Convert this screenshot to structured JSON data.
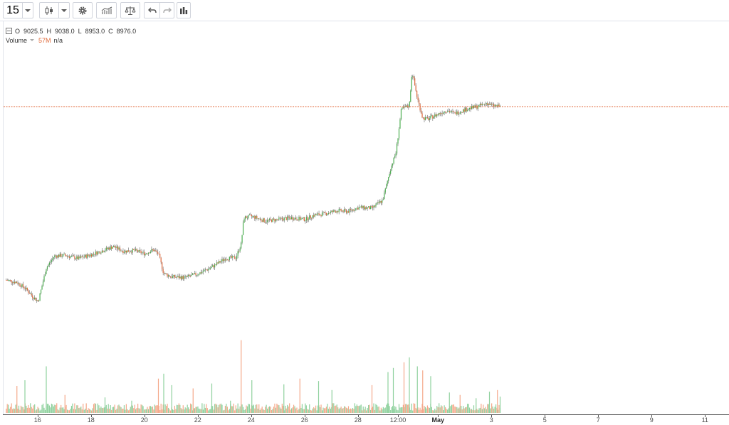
{
  "toolbar": {
    "interval_value": "15",
    "icons": [
      "chevron-down-icon",
      "candlestick-icon",
      "chevron-down-icon",
      "gear-icon",
      "indicators-icon",
      "compare-icon",
      "undo-icon",
      "redo-icon",
      "bar-chart-icon"
    ]
  },
  "legend": {
    "o_label": "O",
    "o_value": "9025.5",
    "h_label": "H",
    "h_value": "9038.0",
    "l_label": "L",
    "l_value": "8953.0",
    "c_label": "C",
    "c_value": "8976.0",
    "volume_label": "Volume",
    "volume_value": "57M",
    "volume_extra": "n/a"
  },
  "colors": {
    "up": "#4caf50",
    "down": "#e0673a",
    "wick": "#6a6a6a",
    "price_line": "#e0673a",
    "vol_up": "#8fd19e",
    "vol_down": "#f4a98a"
  },
  "chart_data": {
    "type": "candlestick",
    "interval": "15",
    "x_ticks": [
      {
        "label": "16",
        "day": 16
      },
      {
        "label": "18",
        "day": 18
      },
      {
        "label": "20",
        "day": 20
      },
      {
        "label": "22",
        "day": 22
      },
      {
        "label": "24",
        "day": 24
      },
      {
        "label": "26",
        "day": 26
      },
      {
        "label": "28",
        "day": 28
      },
      {
        "label": "12:00",
        "day": 29.5
      },
      {
        "label": "May",
        "day": 31,
        "bold": true
      },
      {
        "label": "3",
        "day": 33
      },
      {
        "label": "5",
        "day": 35
      },
      {
        "label": "7",
        "day": 37
      },
      {
        "label": "9",
        "day": 39
      },
      {
        "label": "11",
        "day": 41
      }
    ],
    "x_range": [
      14.7,
      41.9
    ],
    "last_close": 8976.0,
    "ohlc_last": {
      "open": 9025.5,
      "high": 9038.0,
      "low": 8953.0,
      "close": 8976.0
    },
    "price_path": [
      [
        14.8,
        6800
      ],
      [
        15.2,
        6770
      ],
      [
        15.5,
        6700
      ],
      [
        15.8,
        6590
      ],
      [
        16.0,
        6530
      ],
      [
        16.3,
        6950
      ],
      [
        16.6,
        7100
      ],
      [
        17.0,
        7110
      ],
      [
        17.5,
        7070
      ],
      [
        18.0,
        7120
      ],
      [
        18.5,
        7180
      ],
      [
        18.8,
        7220
      ],
      [
        19.2,
        7160
      ],
      [
        19.6,
        7170
      ],
      [
        20.0,
        7130
      ],
      [
        20.3,
        7180
      ],
      [
        20.5,
        7130
      ],
      [
        20.7,
        6880
      ],
      [
        21.0,
        6840
      ],
      [
        21.5,
        6830
      ],
      [
        22.0,
        6880
      ],
      [
        22.5,
        6960
      ],
      [
        23.0,
        7070
      ],
      [
        23.4,
        7080
      ],
      [
        23.6,
        7250
      ],
      [
        23.7,
        7580
      ],
      [
        24.0,
        7600
      ],
      [
        24.5,
        7540
      ],
      [
        25.0,
        7560
      ],
      [
        25.5,
        7580
      ],
      [
        26.0,
        7560
      ],
      [
        26.3,
        7610
      ],
      [
        26.7,
        7630
      ],
      [
        27.2,
        7670
      ],
      [
        27.6,
        7660
      ],
      [
        28.0,
        7710
      ],
      [
        28.5,
        7700
      ],
      [
        28.9,
        7800
      ],
      [
        29.2,
        8200
      ],
      [
        29.4,
        8400
      ],
      [
        29.6,
        8940
      ],
      [
        29.9,
        8990
      ],
      [
        30.0,
        9420
      ],
      [
        30.2,
        9080
      ],
      [
        30.4,
        8830
      ],
      [
        30.6,
        8820
      ],
      [
        30.9,
        8870
      ],
      [
        31.3,
        8930
      ],
      [
        31.6,
        8890
      ],
      [
        32.0,
        8940
      ],
      [
        32.5,
        8980
      ],
      [
        32.8,
        9020
      ],
      [
        33.0,
        8990
      ],
      [
        33.3,
        8976
      ]
    ],
    "volume_spikes": [
      [
        15.2,
        0.33
      ],
      [
        15.5,
        0.4
      ],
      [
        16.3,
        0.57
      ],
      [
        17.0,
        0.22
      ],
      [
        18.5,
        0.19
      ],
      [
        19.5,
        0.15
      ],
      [
        20.5,
        0.42
      ],
      [
        20.7,
        0.48
      ],
      [
        21.0,
        0.34
      ],
      [
        21.8,
        0.3
      ],
      [
        22.5,
        0.36
      ],
      [
        23.2,
        0.15
      ],
      [
        23.6,
        0.89
      ],
      [
        24.0,
        0.4
      ],
      [
        25.2,
        0.35
      ],
      [
        25.8,
        0.42
      ],
      [
        26.5,
        0.39
      ],
      [
        27.0,
        0.28
      ],
      [
        28.5,
        0.34
      ],
      [
        29.1,
        0.5
      ],
      [
        29.3,
        0.55
      ],
      [
        29.7,
        0.62
      ],
      [
        29.9,
        0.68
      ],
      [
        30.2,
        0.57
      ],
      [
        30.4,
        0.52
      ],
      [
        30.7,
        0.45
      ],
      [
        31.4,
        0.25
      ],
      [
        31.8,
        0.22
      ],
      [
        32.4,
        0.18
      ],
      [
        32.9,
        0.26
      ],
      [
        33.2,
        0.28
      ],
      [
        33.3,
        0.2
      ]
    ]
  }
}
